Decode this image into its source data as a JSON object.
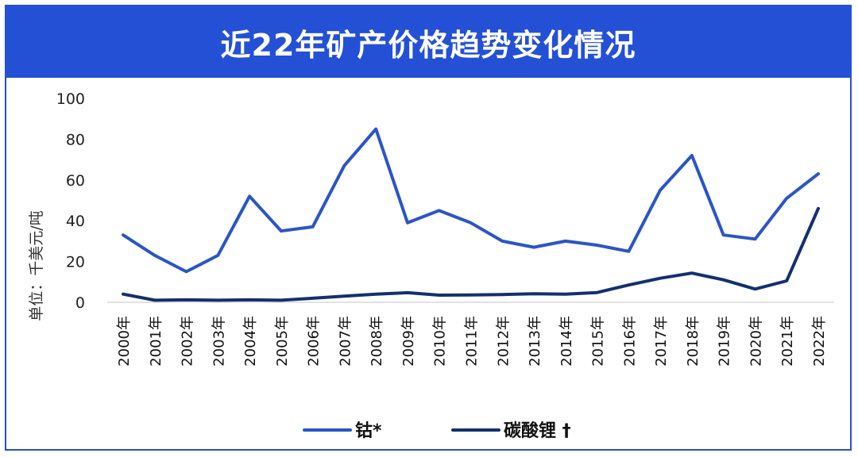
{
  "chart_data": {
    "type": "line",
    "title": "近22年矿产价格趋势变化情况",
    "ylabel": "单位：千美元/吨",
    "xlabel": "",
    "ylim": [
      0,
      100
    ],
    "yticks": [
      "0",
      "20",
      "40",
      "60",
      "80",
      "100"
    ],
    "categories": [
      "2000年",
      "2001年",
      "2002年",
      "2003年",
      "2004年",
      "2005年",
      "2006年",
      "2007年",
      "2008年",
      "2009年",
      "2010年",
      "2011年",
      "2012年",
      "2013年",
      "2014年",
      "2015年",
      "2016年",
      "2017年",
      "2018年",
      "2019年",
      "2020年",
      "2021年",
      "2022年"
    ],
    "series": [
      {
        "name": "钴*",
        "color": "#2a55c8",
        "values": [
          33,
          23,
          15,
          23,
          52,
          35,
          37,
          67,
          85,
          39,
          45,
          39,
          30,
          27,
          30,
          28,
          25,
          55,
          72,
          33,
          31,
          51,
          63
        ]
      },
      {
        "name": "碳酸锂 †",
        "color": "#12306e",
        "values": [
          4,
          1,
          1.2,
          1,
          1.2,
          1,
          2,
          3,
          4,
          4.7,
          3.5,
          3.6,
          3.8,
          4.2,
          4,
          4.8,
          8.5,
          11.8,
          14.3,
          11,
          6.5,
          10.5,
          46
        ]
      }
    ],
    "grid": false,
    "legend_position": "bottom"
  }
}
